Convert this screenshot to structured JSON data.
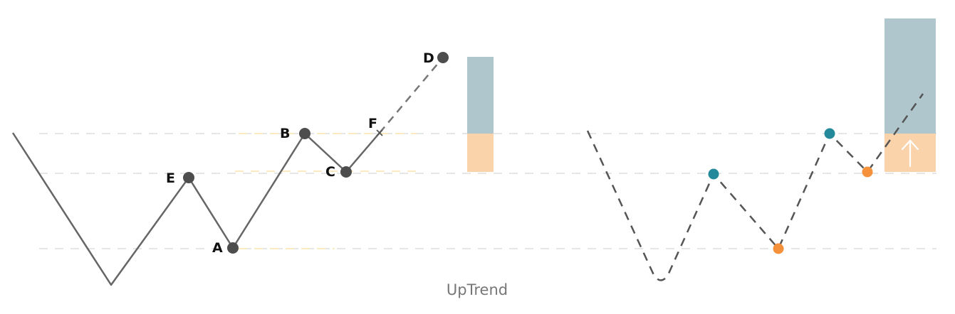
{
  "caption": "UpTrend",
  "points": {
    "A": "A",
    "B": "B",
    "C": "C",
    "D": "D",
    "E": "E",
    "F": "F"
  },
  "colors": {
    "line": "#666666",
    "dash_line": "#555555",
    "point": "#4d4d4d",
    "guide": "#e6e6e6",
    "guide_highlight": "#fbe9bf",
    "upper_box": "#aec6cc",
    "lower_box": "#fbd3ab",
    "teal_point": "#24899a",
    "orange_point": "#f4913a",
    "arrow": "#ffffff"
  }
}
